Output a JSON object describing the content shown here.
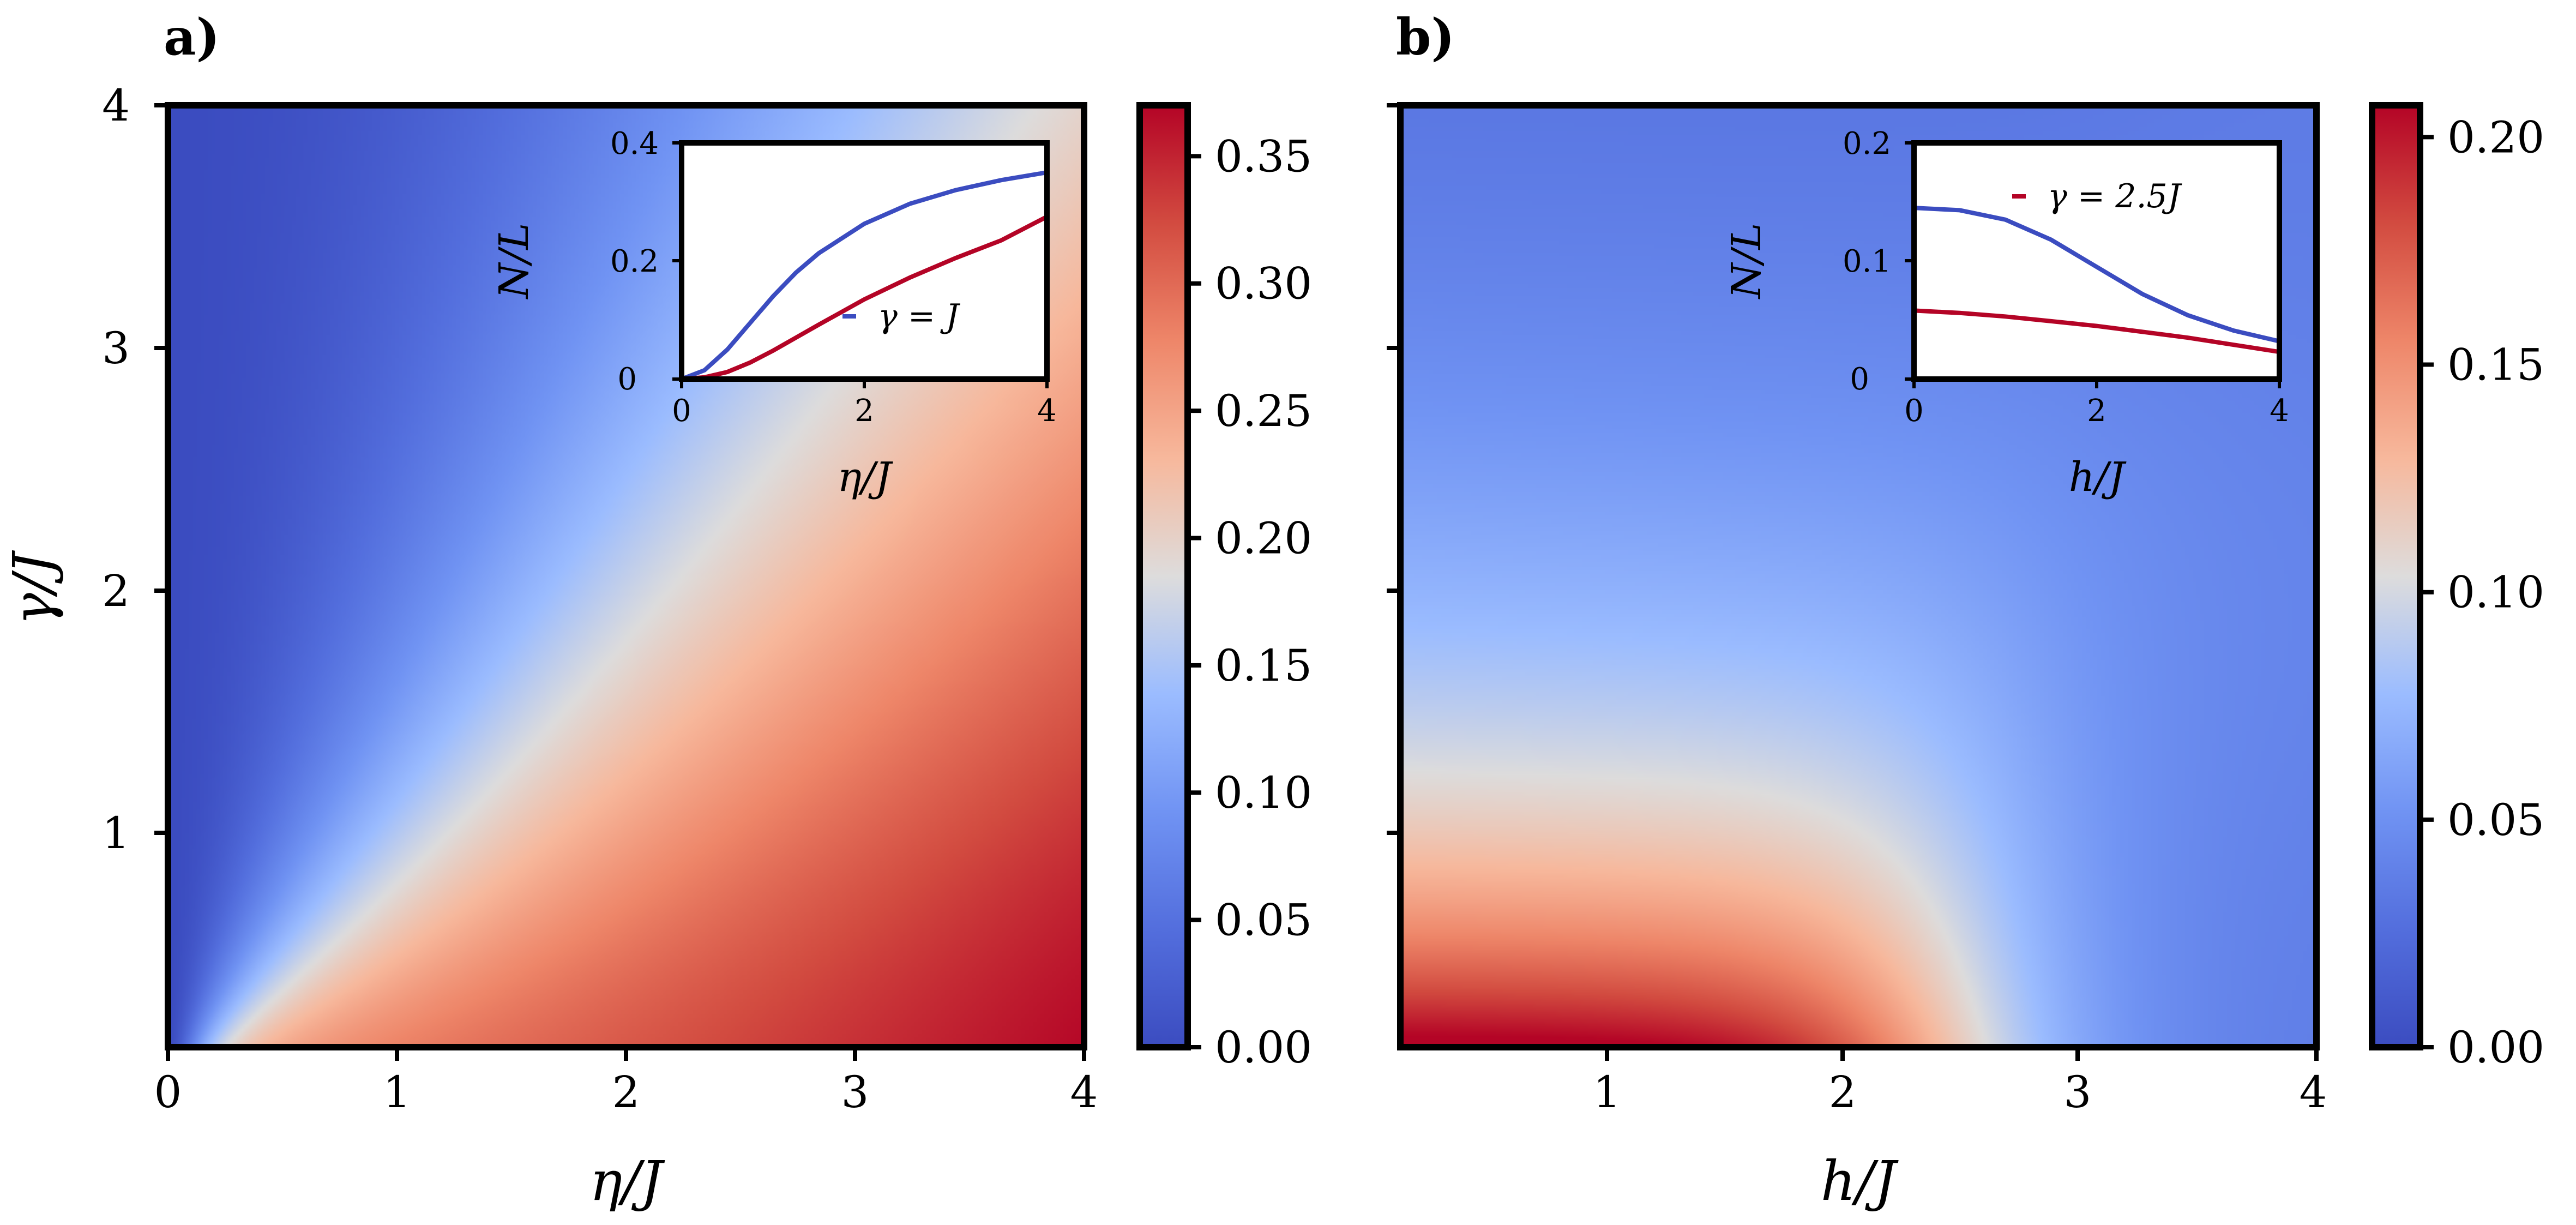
{
  "chart_data": [
    {
      "type": "heatmap",
      "panel_label": "a)",
      "xlabel": "η/J",
      "ylabel": "γ/J",
      "xlim": [
        0,
        4
      ],
      "ylim": [
        0.1,
        4
      ],
      "xticks": [
        {
          "value": 0,
          "label": "0"
        },
        {
          "value": 1,
          "label": "1"
        },
        {
          "value": 2,
          "label": "2"
        },
        {
          "value": 3,
          "label": "3"
        },
        {
          "value": 4,
          "label": "4"
        }
      ],
      "yticks": [
        {
          "value": 1,
          "label": "1"
        },
        {
          "value": 2,
          "label": "2"
        },
        {
          "value": 3,
          "label": "3"
        },
        {
          "value": 4,
          "label": "4"
        }
      ],
      "colormap": "coolwarm",
      "colorbar": {
        "range": [
          0,
          0.37
        ],
        "ticks": [
          {
            "value": 0.0,
            "label": "0.00"
          },
          {
            "value": 0.05,
            "label": "0.05"
          },
          {
            "value": 0.1,
            "label": "0.10"
          },
          {
            "value": 0.15,
            "label": "0.15"
          },
          {
            "value": 0.2,
            "label": "0.20"
          },
          {
            "value": 0.25,
            "label": "0.25"
          },
          {
            "value": 0.3,
            "label": "0.30"
          },
          {
            "value": 0.35,
            "label": "0.35"
          }
        ]
      },
      "inset": {
        "type": "line",
        "xlabel": "η/J",
        "ylabel": "N/L",
        "xlim": [
          0,
          4
        ],
        "ylim": [
          0,
          0.4
        ],
        "xticks": [
          {
            "value": 0,
            "label": "0"
          },
          {
            "value": 2,
            "label": "2"
          },
          {
            "value": 4,
            "label": "4"
          }
        ],
        "yticks": [
          {
            "value": 0,
            "label": "0"
          },
          {
            "value": 0.2,
            "label": "0.2"
          },
          {
            "value": 0.4,
            "label": "0.4"
          }
        ],
        "legend": {
          "label": "γ = J",
          "color": "#3b4cc0",
          "placement": "center-right"
        },
        "series": [
          {
            "name": "γ = J",
            "color": "#3b4cc0",
            "x": [
              0,
              0.25,
              0.5,
              0.75,
              1,
              1.25,
              1.5,
              2,
              2.5,
              3,
              3.5,
              4
            ],
            "y": [
              0,
              0.015,
              0.05,
              0.095,
              0.14,
              0.18,
              0.213,
              0.263,
              0.297,
              0.32,
              0.337,
              0.35
            ]
          },
          {
            "name": "γ = 2.5J",
            "color": "#b40426",
            "x": [
              0,
              0.25,
              0.5,
              0.75,
              1,
              1.25,
              1.5,
              2,
              2.5,
              3,
              3.5,
              4
            ],
            "y": [
              0,
              0.003,
              0.012,
              0.028,
              0.048,
              0.07,
              0.092,
              0.135,
              0.172,
              0.205,
              0.235,
              0.275
            ]
          }
        ]
      }
    },
    {
      "type": "heatmap",
      "panel_label": "b)",
      "xlabel": "h/J",
      "ylabel": "",
      "xlim": [
        0.1,
        4
      ],
      "ylim": [
        0.1,
        4
      ],
      "xticks": [
        {
          "value": 1,
          "label": "1"
        },
        {
          "value": 2,
          "label": "2"
        },
        {
          "value": 3,
          "label": "3"
        },
        {
          "value": 4,
          "label": "4"
        }
      ],
      "yticks": [
        {
          "value": 1,
          "label": ""
        },
        {
          "value": 2,
          "label": ""
        },
        {
          "value": 3,
          "label": ""
        },
        {
          "value": 4,
          "label": ""
        }
      ],
      "colormap": "coolwarm",
      "colorbar": {
        "range": [
          0,
          0.207
        ],
        "ticks": [
          {
            "value": 0.0,
            "label": "0.00"
          },
          {
            "value": 0.05,
            "label": "0.05"
          },
          {
            "value": 0.1,
            "label": "0.10"
          },
          {
            "value": 0.15,
            "label": "0.15"
          },
          {
            "value": 0.2,
            "label": "0.20"
          }
        ]
      },
      "inset": {
        "type": "line",
        "xlabel": "h/J",
        "ylabel": "N/L",
        "xlim": [
          0,
          4
        ],
        "ylim": [
          0,
          0.2
        ],
        "xticks": [
          {
            "value": 0,
            "label": "0"
          },
          {
            "value": 2,
            "label": "2"
          },
          {
            "value": 4,
            "label": "4"
          }
        ],
        "yticks": [
          {
            "value": 0,
            "label": "0"
          },
          {
            "value": 0.1,
            "label": "0.1"
          },
          {
            "value": 0.2,
            "label": "0.2"
          }
        ],
        "legend": {
          "label": "γ = 2.5J",
          "color": "#b40426",
          "placement": "top-right"
        },
        "series": [
          {
            "name": "γ = J",
            "color": "#3b4cc0",
            "x": [
              0,
              0.5,
              1,
              1.5,
              2,
              2.5,
              3,
              3.5,
              4
            ],
            "y": [
              0.145,
              0.143,
              0.135,
              0.118,
              0.095,
              0.072,
              0.054,
              0.041,
              0.032
            ]
          },
          {
            "name": "γ = 2.5J",
            "color": "#b40426",
            "x": [
              0,
              0.5,
              1,
              1.5,
              2,
              2.5,
              3,
              3.5,
              4
            ],
            "y": [
              0.058,
              0.056,
              0.053,
              0.049,
              0.045,
              0.04,
              0.035,
              0.029,
              0.023
            ]
          }
        ]
      }
    }
  ]
}
